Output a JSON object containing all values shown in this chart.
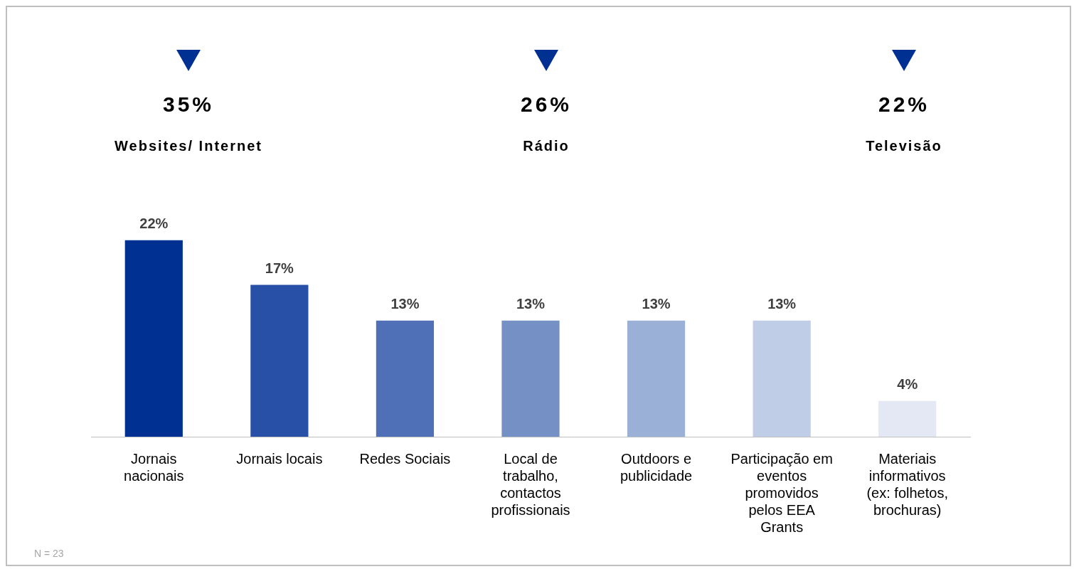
{
  "chart_data": [
    {
      "type": "other",
      "categories": [
        "Websites/ Internet",
        "Rádio",
        "Televisão"
      ],
      "values": [
        35,
        26,
        22
      ],
      "value_labels": [
        "35%",
        "26%",
        "22%"
      ],
      "color": "#003192"
    },
    {
      "type": "bar",
      "categories": [
        "Jornais nacionais",
        "Jornais locais",
        "Redes Sociais",
        "Local de trabalho, contactos profissionais",
        "Outdoors e publicidade",
        "Participação em eventos promovidos pelos EEA Grants",
        "Materiais informativos (ex: folhetos, brochuras)"
      ],
      "values": [
        22,
        17,
        13,
        13,
        13,
        13,
        4
      ],
      "colors": [
        "#003192",
        "#2850a6",
        "#4f70b6",
        "#7490c5",
        "#9bb0d7",
        "#c0cde6",
        "#e3e8f4"
      ],
      "value_labels": [
        "22%",
        "17%",
        "13%",
        "13%",
        "13%",
        "13%",
        "4%"
      ],
      "grid": false,
      "legend": false,
      "annotations": [
        "N = 23"
      ]
    }
  ]
}
